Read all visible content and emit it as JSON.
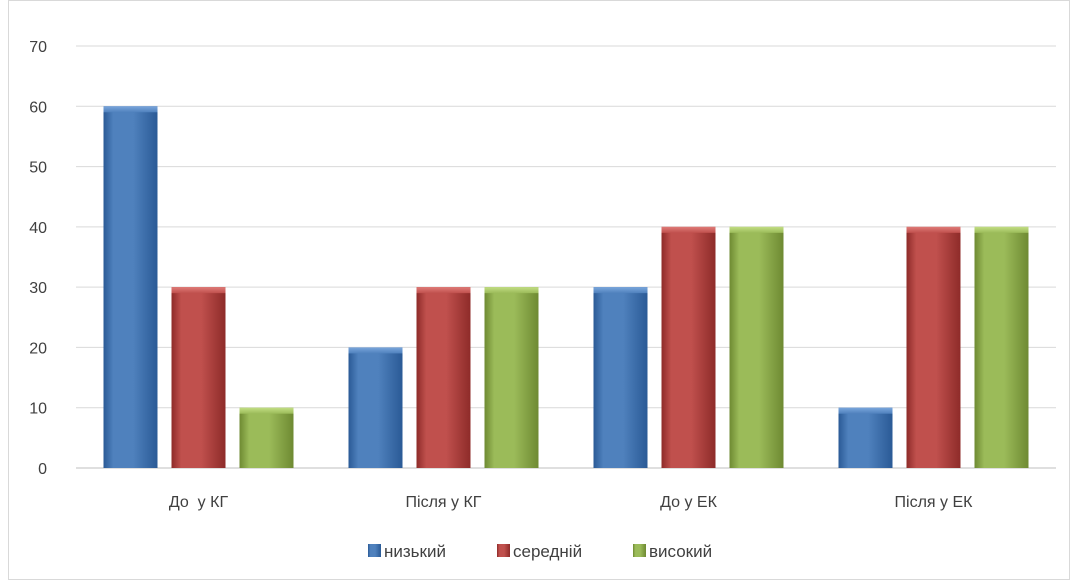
{
  "chart_data": {
    "type": "bar",
    "title": "",
    "xlabel": "",
    "ylabel": "",
    "categories": [
      "До  у КГ",
      "Після у КГ",
      "До у ЕК",
      "Після у ЕК"
    ],
    "ylim": [
      0,
      70
    ],
    "yticks": [
      0,
      10,
      20,
      30,
      40,
      50,
      60,
      70
    ],
    "grid": true,
    "legend_position": "bottom",
    "series": [
      {
        "name": "низький",
        "values": [
          60,
          20,
          30,
          10
        ],
        "color": "#4f81bd",
        "dark": "#2a5a96",
        "light": "#7aa6dc"
      },
      {
        "name": "середній",
        "values": [
          30,
          30,
          40,
          40
        ],
        "color": "#c0504d",
        "dark": "#8e2b29",
        "light": "#e07a77"
      },
      {
        "name": "високий",
        "values": [
          10,
          30,
          40,
          40
        ],
        "color": "#9bbb59",
        "dark": "#6e8a32",
        "light": "#c2de83"
      }
    ]
  }
}
